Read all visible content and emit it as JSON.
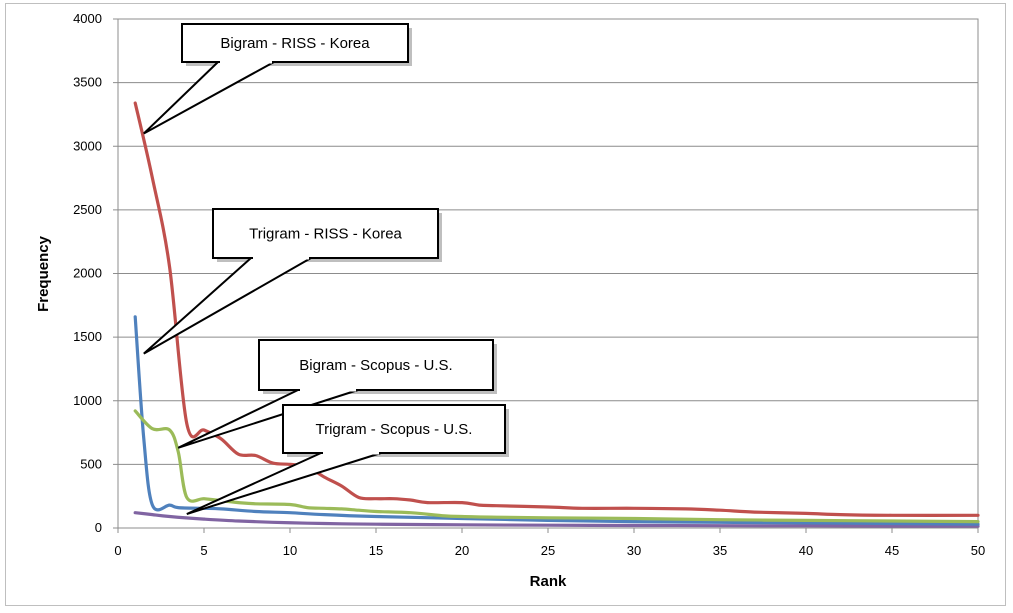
{
  "chart_data": {
    "type": "line",
    "xlabel": "Rank",
    "ylabel": "Frequency",
    "xlim": [
      0,
      50
    ],
    "ylim": [
      0,
      4000
    ],
    "x_ticks": [
      0,
      5,
      10,
      15,
      20,
      25,
      30,
      35,
      40,
      45,
      50
    ],
    "y_ticks": [
      0,
      500,
      1000,
      1500,
      2000,
      2500,
      3000,
      3500,
      4000
    ],
    "grid": "horizontal",
    "legend": "none (callout labels)",
    "series": [
      {
        "name": "Bigram - RISS - Korea",
        "color": "#C0504D",
        "points": [
          [
            1,
            3340
          ],
          [
            2,
            2750
          ],
          [
            3,
            2050
          ],
          [
            4,
            820
          ],
          [
            5,
            770
          ],
          [
            6,
            700
          ],
          [
            7,
            580
          ],
          [
            8,
            570
          ],
          [
            9,
            510
          ],
          [
            10,
            500
          ],
          [
            11,
            480
          ],
          [
            12,
            400
          ],
          [
            13,
            330
          ],
          [
            14,
            240
          ],
          [
            15,
            230
          ],
          [
            16,
            230
          ],
          [
            17,
            220
          ],
          [
            18,
            200
          ],
          [
            20,
            200
          ],
          [
            21,
            180
          ],
          [
            22,
            175
          ],
          [
            25,
            165
          ],
          [
            27,
            155
          ],
          [
            30,
            155
          ],
          [
            33,
            150
          ],
          [
            35,
            140
          ],
          [
            37,
            125
          ],
          [
            40,
            115
          ],
          [
            42,
            105
          ],
          [
            45,
            100
          ],
          [
            50,
            100
          ]
        ]
      },
      {
        "name": "Trigram - RISS - Korea",
        "color": "#4F81BD",
        "points": [
          [
            1,
            1660
          ],
          [
            1.5,
            700
          ],
          [
            2,
            180
          ],
          [
            3,
            180
          ],
          [
            3.5,
            160
          ],
          [
            5,
            155
          ],
          [
            6,
            150
          ],
          [
            8,
            130
          ],
          [
            10,
            120
          ],
          [
            12,
            105
          ],
          [
            15,
            90
          ],
          [
            20,
            75
          ],
          [
            25,
            60
          ],
          [
            30,
            50
          ],
          [
            35,
            45
          ],
          [
            40,
            40
          ],
          [
            45,
            35
          ],
          [
            50,
            30
          ]
        ]
      },
      {
        "name": "Bigram - Scopus - U.S.",
        "color": "#9BBB59",
        "points": [
          [
            1,
            920
          ],
          [
            2,
            780
          ],
          [
            3,
            770
          ],
          [
            3.5,
            600
          ],
          [
            4,
            240
          ],
          [
            5,
            230
          ],
          [
            6,
            215
          ],
          [
            7,
            200
          ],
          [
            8,
            190
          ],
          [
            10,
            185
          ],
          [
            11,
            160
          ],
          [
            12,
            155
          ],
          [
            13,
            150
          ],
          [
            14,
            140
          ],
          [
            15,
            130
          ],
          [
            17,
            120
          ],
          [
            19,
            95
          ],
          [
            20,
            90
          ],
          [
            22,
            85
          ],
          [
            25,
            80
          ],
          [
            30,
            75
          ],
          [
            35,
            65
          ],
          [
            40,
            60
          ],
          [
            45,
            55
          ],
          [
            50,
            50
          ]
        ]
      },
      {
        "name": "Trigram - Scopus - U.S.",
        "color": "#8064A2",
        "points": [
          [
            1,
            120
          ],
          [
            2,
            105
          ],
          [
            3,
            90
          ],
          [
            5,
            70
          ],
          [
            7,
            55
          ],
          [
            9,
            45
          ],
          [
            11,
            38
          ],
          [
            13,
            33
          ],
          [
            15,
            30
          ],
          [
            20,
            25
          ],
          [
            25,
            22
          ],
          [
            30,
            20
          ],
          [
            35,
            18
          ],
          [
            40,
            17
          ],
          [
            45,
            15
          ],
          [
            50,
            14
          ]
        ]
      }
    ],
    "annotations": [
      {
        "text": "Bigram - RISS - Korea",
        "target": [
          1.5,
          3100
        ]
      },
      {
        "text": "Trigram - RISS - Korea",
        "target": [
          1.5,
          1370
        ]
      },
      {
        "text": "Bigram - Scopus - U.S.",
        "target": [
          3.5,
          630
        ]
      },
      {
        "text": "Trigram - Scopus - U.S.",
        "target": [
          4,
          110
        ]
      }
    ]
  }
}
